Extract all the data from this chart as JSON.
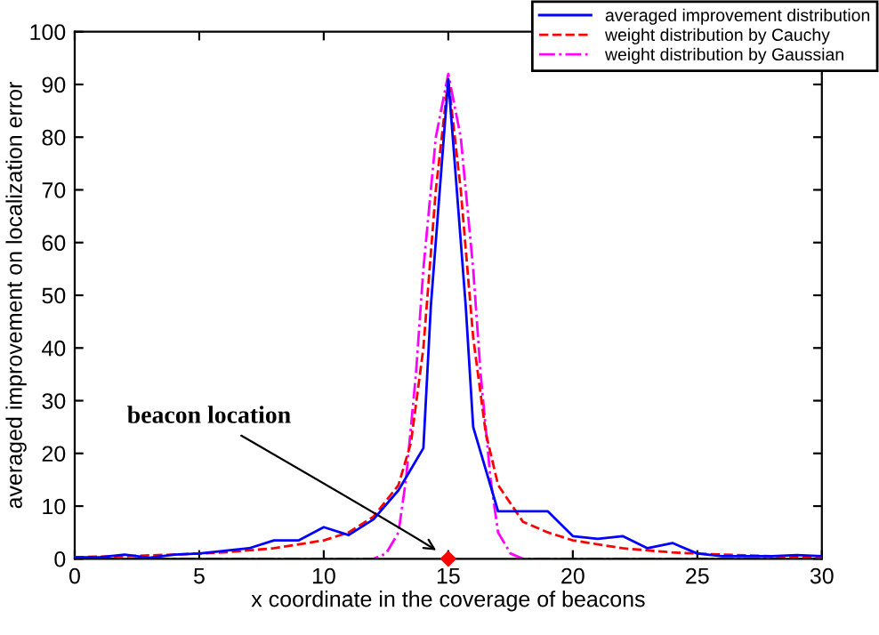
{
  "chart_data": {
    "type": "line",
    "xlabel": "x coordinate in the coverage of beacons",
    "ylabel": "averaged improvement on localization error",
    "xlim": [
      0,
      30
    ],
    "ylim": [
      0,
      100
    ],
    "xticks": [
      0,
      5,
      10,
      15,
      20,
      25,
      30
    ],
    "yticks": [
      0,
      10,
      20,
      30,
      40,
      50,
      60,
      70,
      80,
      90,
      100
    ],
    "grid": false,
    "legend": "top right",
    "marker": "none",
    "annotations": [
      "beacon location"
    ],
    "series": [
      {
        "name": "averaged improvement distribution",
        "color": "#0000ff",
        "line_style": "solid",
        "x": [
          0,
          1,
          2,
          3,
          4,
          5,
          6,
          7,
          8,
          9,
          10,
          11,
          12,
          13,
          14,
          14.3,
          15,
          15.7,
          16,
          17,
          18,
          19,
          20,
          21,
          22,
          23,
          24,
          25,
          26,
          27,
          28,
          29,
          30
        ],
        "values": [
          0.3,
          0.3,
          0.8,
          0.2,
          0.8,
          1,
          1.5,
          2,
          3.5,
          3.5,
          6,
          4.5,
          7.5,
          13,
          21,
          48,
          91,
          48,
          25,
          9,
          9,
          9,
          4.3,
          3.8,
          4.3,
          2,
          3,
          1,
          0.5,
          0.5,
          0.5,
          0.7,
          0.5
        ]
      },
      {
        "name": "weight distribution by Cauchy",
        "color": "#ff0000",
        "line_style": "dashed",
        "x": [
          0,
          2,
          4,
          6,
          8,
          10,
          11,
          12,
          13,
          13.5,
          14,
          14.5,
          15,
          15.5,
          16,
          16.5,
          17,
          18,
          19,
          20,
          22,
          24,
          26,
          28,
          30
        ],
        "values": [
          0.3,
          0.5,
          0.8,
          1.2,
          2,
          3.5,
          5,
          8,
          14,
          22,
          40,
          70,
          91,
          70,
          42,
          24,
          14,
          7,
          5,
          3.5,
          2,
          1.2,
          0.8,
          0.5,
          0.3
        ]
      },
      {
        "name": "weight distribution by Gaussian",
        "color": "#ff00ff",
        "line_style": "dashdot",
        "x": [
          0,
          12,
          12.5,
          13,
          13.3,
          13.7,
          14,
          14.5,
          15,
          15.5,
          16,
          16.3,
          16.7,
          17,
          17.5,
          18,
          30
        ],
        "values": [
          0,
          0,
          1,
          5,
          15,
          35,
          55,
          80,
          92,
          80,
          55,
          35,
          15,
          5,
          1,
          0,
          0
        ]
      },
      {
        "type": "scatter",
        "color": "#ff0000",
        "marker": "diamond",
        "x": [
          15
        ],
        "values": [
          0
        ]
      }
    ]
  }
}
